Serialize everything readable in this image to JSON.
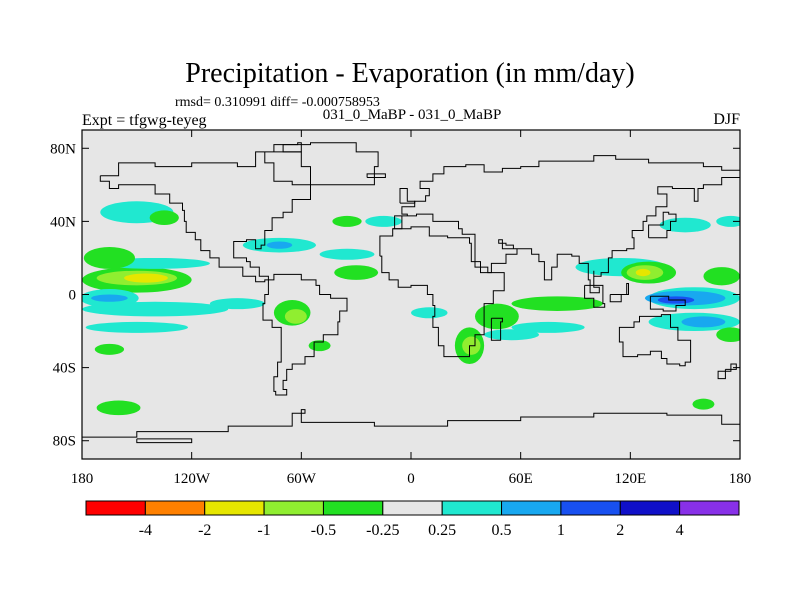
{
  "chart_data": {
    "type": "heatmap",
    "title": "Precipitation - Evaporation (in mm/day)",
    "stats": "rmsd= 0.310991 diff= -0.000758953",
    "left_label": "Expt = tfgwg-teyeg",
    "center_label": "031_0_MaBP - 031_0_MaBP",
    "right_label": "DJF",
    "x_ticks": [
      "180",
      "120W",
      "60W",
      "0",
      "60E",
      "120E",
      "180"
    ],
    "y_ticks": [
      "80N",
      "40N",
      "0",
      "40S",
      "80S"
    ],
    "x_tick_values": [
      -180,
      -120,
      -60,
      0,
      60,
      120,
      180
    ],
    "y_tick_values": [
      80,
      40,
      0,
      -40,
      -80
    ],
    "xlim": [
      -180,
      180
    ],
    "ylim": [
      -90,
      90
    ],
    "colorbar": {
      "colors": [
        "#ff0000",
        "#ff8000",
        "#e6e600",
        "#90ee30",
        "#22e022",
        "#e6e6e6",
        "#20e8d0",
        "#18a8f0",
        "#1850f0",
        "#1010c8",
        "#8830e8"
      ],
      "labels": [
        "-4",
        "-2",
        "-1",
        "-0.5",
        "-0.25",
        "0.25",
        "0.5",
        "1",
        "2",
        "4"
      ]
    },
    "regions": [
      {
        "level": "-0.5",
        "color": "#22e022",
        "lon": -150,
        "lat": 8,
        "rx": 30,
        "ry": 7
      },
      {
        "level": "-1",
        "color": "#90ee30",
        "lon": -150,
        "lat": 9,
        "rx": 22,
        "ry": 4
      },
      {
        "level": "-2",
        "color": "#e6e600",
        "lon": -145,
        "lat": 9,
        "rx": 12,
        "ry": 2.5
      },
      {
        "level": "0.5",
        "color": "#20e8d0",
        "lon": -165,
        "lat": -2,
        "rx": 16,
        "ry": 5
      },
      {
        "level": "1",
        "color": "#18a8f0",
        "lon": -165,
        "lat": -2,
        "rx": 10,
        "ry": 2
      },
      {
        "level": "0.5",
        "color": "#20e8d0",
        "lon": -140,
        "lat": -8,
        "rx": 40,
        "ry": 4
      },
      {
        "level": "0.5",
        "color": "#20e8d0",
        "lon": -150,
        "lat": -18,
        "rx": 28,
        "ry": 3
      },
      {
        "level": "0.5",
        "color": "#20e8d0",
        "lon": -140,
        "lat": 17,
        "rx": 30,
        "ry": 3
      },
      {
        "level": "-0.5",
        "color": "#22e022",
        "lon": -165,
        "lat": 20,
        "rx": 14,
        "ry": 6
      },
      {
        "level": "0.5",
        "color": "#20e8d0",
        "lon": -150,
        "lat": 45,
        "rx": 20,
        "ry": 6
      },
      {
        "level": "-0.5",
        "color": "#22e022",
        "lon": -135,
        "lat": 42,
        "rx": 8,
        "ry": 4
      },
      {
        "level": "-0.5",
        "color": "#22e022",
        "lon": -165,
        "lat": -30,
        "rx": 8,
        "ry": 3
      },
      {
        "level": "-0.5",
        "color": "#22e022",
        "lon": -160,
        "lat": -62,
        "rx": 12,
        "ry": 4
      },
      {
        "level": "-0.5",
        "color": "#22e022",
        "lon": -65,
        "lat": -10,
        "rx": 10,
        "ry": 7
      },
      {
        "level": "-1",
        "color": "#90ee30",
        "lon": -63,
        "lat": -12,
        "rx": 6,
        "ry": 4
      },
      {
        "level": "0.5",
        "color": "#20e8d0",
        "lon": -95,
        "lat": -5,
        "rx": 15,
        "ry": 3
      },
      {
        "level": "0.5",
        "color": "#20e8d0",
        "lon": -72,
        "lat": 27,
        "rx": 20,
        "ry": 4
      },
      {
        "level": "1",
        "color": "#18a8f0",
        "lon": -72,
        "lat": 27,
        "rx": 7,
        "ry": 2
      },
      {
        "level": "-0.5",
        "color": "#22e022",
        "lon": -30,
        "lat": 12,
        "rx": 12,
        "ry": 4
      },
      {
        "level": "0.5",
        "color": "#20e8d0",
        "lon": -35,
        "lat": 22,
        "rx": 15,
        "ry": 3
      },
      {
        "level": "-0.5",
        "color": "#22e022",
        "lon": -50,
        "lat": -28,
        "rx": 6,
        "ry": 3
      },
      {
        "level": "-0.5",
        "color": "#22e022",
        "lon": -35,
        "lat": 40,
        "rx": 8,
        "ry": 3
      },
      {
        "level": "0.5",
        "color": "#20e8d0",
        "lon": -15,
        "lat": 40,
        "rx": 10,
        "ry": 3
      },
      {
        "level": "0.5",
        "color": "#20e8d0",
        "lon": 10,
        "lat": -10,
        "rx": 10,
        "ry": 3
      },
      {
        "level": "-0.5",
        "color": "#22e022",
        "lon": 32,
        "lat": -28,
        "rx": 8,
        "ry": 10
      },
      {
        "level": "-0.5",
        "color": "#22e022",
        "lon": 47,
        "lat": -12,
        "rx": 12,
        "ry": 7
      },
      {
        "level": "-1",
        "color": "#90ee30",
        "lon": 33,
        "lat": -28,
        "rx": 5,
        "ry": 5
      },
      {
        "level": "0.5",
        "color": "#20e8d0",
        "lon": 75,
        "lat": -18,
        "rx": 20,
        "ry": 3
      },
      {
        "level": "0.5",
        "color": "#20e8d0",
        "lon": 55,
        "lat": -22,
        "rx": 15,
        "ry": 3
      },
      {
        "level": "-0.5",
        "color": "#22e022",
        "lon": 80,
        "lat": -5,
        "rx": 25,
        "ry": 4
      },
      {
        "level": "0.5",
        "color": "#20e8d0",
        "lon": 115,
        "lat": 15,
        "rx": 25,
        "ry": 5
      },
      {
        "level": "0.5",
        "color": "#20e8d0",
        "lon": 155,
        "lat": -2,
        "rx": 25,
        "ry": 6
      },
      {
        "level": "1",
        "color": "#18a8f0",
        "lon": 150,
        "lat": -2,
        "rx": 22,
        "ry": 4
      },
      {
        "level": "2",
        "color": "#1850f0",
        "lon": 145,
        "lat": -3,
        "rx": 10,
        "ry": 2
      },
      {
        "level": "0.5",
        "color": "#20e8d0",
        "lon": 155,
        "lat": -15,
        "rx": 25,
        "ry": 5
      },
      {
        "level": "1",
        "color": "#18a8f0",
        "lon": 160,
        "lat": -15,
        "rx": 12,
        "ry": 3
      },
      {
        "level": "-0.5",
        "color": "#22e022",
        "lon": 130,
        "lat": 12,
        "rx": 15,
        "ry": 6
      },
      {
        "level": "-1",
        "color": "#90ee30",
        "lon": 128,
        "lat": 12,
        "rx": 10,
        "ry": 4
      },
      {
        "level": "-2",
        "color": "#e6e600",
        "lon": 127,
        "lat": 12,
        "rx": 4,
        "ry": 2
      },
      {
        "level": "-0.5",
        "color": "#22e022",
        "lon": 175,
        "lat": -22,
        "rx": 8,
        "ry": 4
      },
      {
        "level": "-0.5",
        "color": "#22e022",
        "lon": 170,
        "lat": 10,
        "rx": 10,
        "ry": 5
      },
      {
        "level": "0.5",
        "color": "#20e8d0",
        "lon": 150,
        "lat": 38,
        "rx": 14,
        "ry": 4
      },
      {
        "level": "-0.5",
        "color": "#22e022",
        "lon": 160,
        "lat": -60,
        "rx": 6,
        "ry": 3
      },
      {
        "level": "0.5",
        "color": "#20e8d0",
        "lon": 175,
        "lat": 40,
        "rx": 8,
        "ry": 3
      }
    ]
  }
}
